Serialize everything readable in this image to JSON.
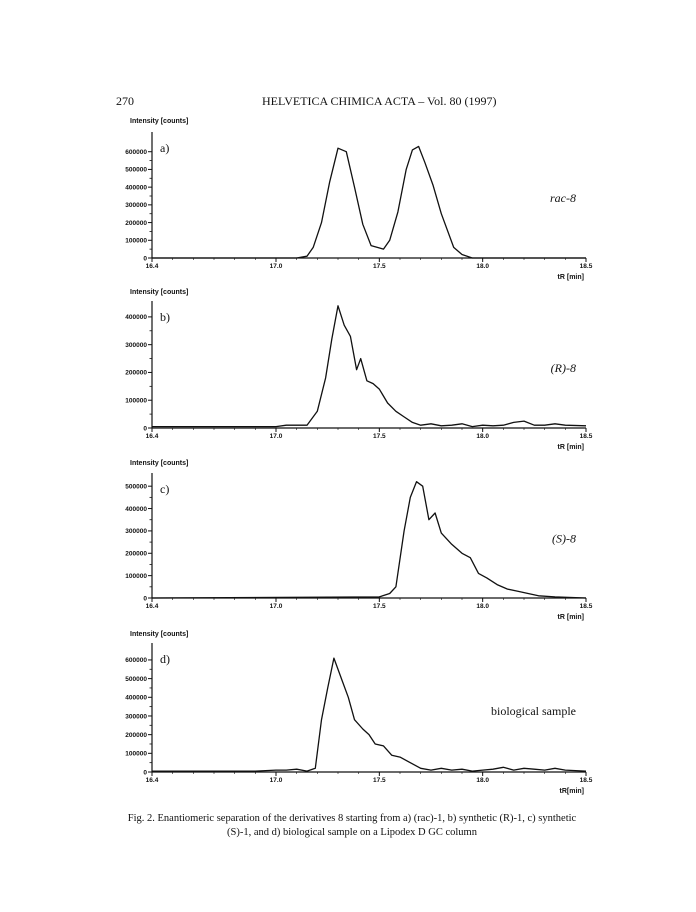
{
  "header": {
    "page_number": "270",
    "journal": "HELVETICA CHIMICA ACTA – Vol. 80 (1997)"
  },
  "caption": {
    "line1": "Fig. 2. Enantiomeric separation of the derivatives 8 starting from a) (rac)-1, b) synthetic (R)-1, c) synthetic",
    "line2": "(S)-1, and d) biological sample on a Lipodex D GC column"
  },
  "chart_data": [
    {
      "type": "line",
      "panel_label": "a)",
      "series_label": "rac-8",
      "ylabel": "Intensity [counts]",
      "xlabel": "tR [min]",
      "xlim": [
        16.4,
        18.5
      ],
      "ylim": [
        0,
        700000
      ],
      "xticks": [
        "16.4",
        "17.0",
        "17.5",
        "18.0",
        "18.5"
      ],
      "yticks": [
        0,
        100000,
        200000,
        300000,
        400000,
        500000,
        600000
      ],
      "ytick_labels": [
        "0",
        "100000",
        "200000",
        "300000",
        "400000",
        "500000",
        "600000"
      ],
      "x": [
        16.4,
        17.1,
        17.15,
        17.18,
        17.22,
        17.26,
        17.3,
        17.34,
        17.38,
        17.42,
        17.46,
        17.52,
        17.55,
        17.59,
        17.63,
        17.66,
        17.69,
        17.72,
        17.76,
        17.8,
        17.86,
        17.9,
        17.95,
        18.5
      ],
      "y": [
        0,
        0,
        10000,
        60000,
        200000,
        430000,
        620000,
        600000,
        400000,
        190000,
        70000,
        50000,
        100000,
        260000,
        500000,
        610000,
        630000,
        540000,
        410000,
        250000,
        60000,
        20000,
        0,
        0
      ]
    },
    {
      "type": "line",
      "panel_label": "b)",
      "series_label": "(R)-8",
      "ylabel": "Intensity [counts]",
      "xlabel": "tR [min]",
      "xlim": [
        16.4,
        18.5
      ],
      "ylim": [
        0,
        450000
      ],
      "xticks": [
        "16.4",
        "17.0",
        "17.5",
        "18.0",
        "18.5"
      ],
      "yticks": [
        0,
        100000,
        200000,
        300000,
        400000
      ],
      "ytick_labels": [
        "0",
        "100000",
        "200000",
        "300000",
        "400000"
      ],
      "x": [
        16.4,
        16.8,
        17.0,
        17.05,
        17.1,
        17.15,
        17.2,
        17.24,
        17.27,
        17.3,
        17.33,
        17.36,
        17.39,
        17.41,
        17.44,
        17.47,
        17.5,
        17.54,
        17.58,
        17.62,
        17.66,
        17.7,
        17.75,
        17.8,
        17.85,
        17.9,
        17.95,
        18.0,
        18.05,
        18.1,
        18.15,
        18.2,
        18.25,
        18.3,
        18.35,
        18.4,
        18.5
      ],
      "y": [
        5000,
        5000,
        5000,
        10000,
        10000,
        10000,
        60000,
        180000,
        320000,
        440000,
        370000,
        330000,
        210000,
        250000,
        170000,
        160000,
        140000,
        90000,
        60000,
        40000,
        20000,
        10000,
        15000,
        8000,
        10000,
        15000,
        5000,
        10000,
        8000,
        10000,
        20000,
        25000,
        10000,
        10000,
        15000,
        10000,
        8000
      ]
    },
    {
      "type": "line",
      "panel_label": "c)",
      "series_label": "(S)-8",
      "ylabel": "Intensity [counts]",
      "xlabel": "tR [min]",
      "xlim": [
        16.4,
        18.5
      ],
      "ylim": [
        0,
        550000
      ],
      "xticks": [
        "16.4",
        "17.0",
        "17.5",
        "18.0",
        "18.5"
      ],
      "yticks": [
        0,
        100000,
        200000,
        300000,
        400000,
        500000
      ],
      "ytick_labels": [
        "0",
        "100000",
        "200000",
        "300000",
        "400000",
        "500000"
      ],
      "x": [
        16.4,
        17.5,
        17.55,
        17.58,
        17.62,
        17.65,
        17.68,
        17.71,
        17.74,
        17.77,
        17.8,
        17.85,
        17.9,
        17.94,
        17.98,
        18.02,
        18.07,
        18.12,
        18.17,
        18.22,
        18.27,
        18.35,
        18.5
      ],
      "y": [
        0,
        5000,
        20000,
        50000,
        300000,
        450000,
        520000,
        500000,
        350000,
        380000,
        290000,
        240000,
        200000,
        180000,
        110000,
        90000,
        60000,
        40000,
        30000,
        20000,
        10000,
        5000,
        0
      ]
    },
    {
      "type": "line",
      "panel_label": "d)",
      "series_label": "biological sample",
      "ylabel": "Intensity [counts]",
      "xlabel": "tR[min]",
      "xlim": [
        16.4,
        18.5
      ],
      "ylim": [
        0,
        680000
      ],
      "xticks": [
        "16.4",
        "17.0",
        "17.5",
        "18.0",
        "18.5"
      ],
      "yticks": [
        0,
        100000,
        200000,
        300000,
        400000,
        500000,
        600000
      ],
      "ytick_labels": [
        "0",
        "100000",
        "200000",
        "300000",
        "400000",
        "500000",
        "600000"
      ],
      "x": [
        16.4,
        16.9,
        17.0,
        17.05,
        17.1,
        17.15,
        17.19,
        17.22,
        17.25,
        17.28,
        17.32,
        17.35,
        17.38,
        17.42,
        17.45,
        17.48,
        17.52,
        17.56,
        17.6,
        17.65,
        17.7,
        17.75,
        17.8,
        17.85,
        17.9,
        17.95,
        18.0,
        18.05,
        18.1,
        18.15,
        18.2,
        18.25,
        18.3,
        18.35,
        18.4,
        18.5
      ],
      "y": [
        5000,
        5000,
        10000,
        10000,
        15000,
        5000,
        20000,
        280000,
        450000,
        610000,
        490000,
        400000,
        280000,
        230000,
        200000,
        150000,
        140000,
        90000,
        80000,
        50000,
        20000,
        10000,
        20000,
        10000,
        15000,
        5000,
        10000,
        15000,
        25000,
        10000,
        20000,
        15000,
        10000,
        20000,
        10000,
        5000
      ]
    }
  ]
}
